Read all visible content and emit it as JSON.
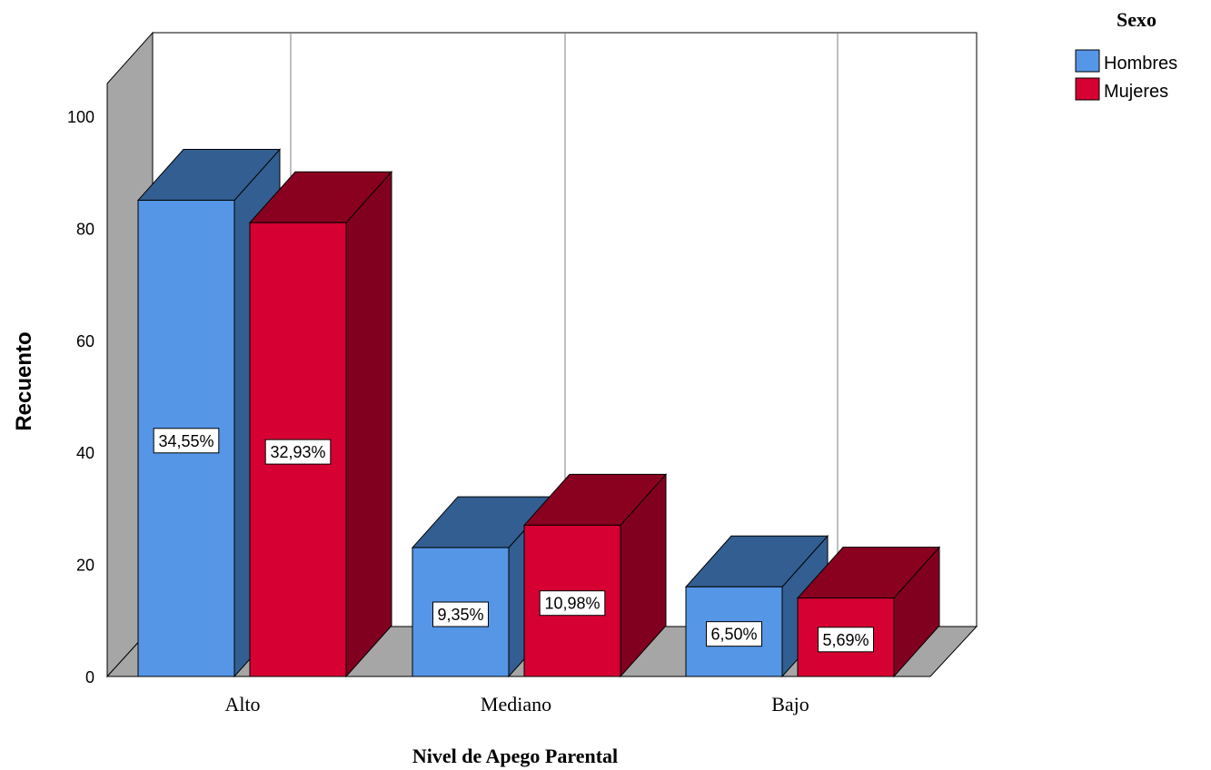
{
  "chart_data": {
    "type": "bar",
    "title": "",
    "xlabel": "Nivel de Apego Parental",
    "ylabel": "Recuento",
    "ylim": [
      0,
      110
    ],
    "yticks": [
      "0",
      "20",
      "40",
      "60",
      "80",
      "100"
    ],
    "categories": [
      "Alto",
      "Mediano",
      "Bajo"
    ],
    "legend": {
      "title": "Sexo",
      "placement": "top-right"
    },
    "series": [
      {
        "name": "Hombres",
        "values": [
          85,
          23,
          16
        ],
        "labels": [
          "34,55%",
          "9,35%",
          "6,50%"
        ],
        "color": "#5596E6",
        "top_color": "#335E91",
        "side_color": "#335E91"
      },
      {
        "name": "Mujeres",
        "values": [
          81,
          27,
          14
        ],
        "labels": [
          "32,93%",
          "10,98%",
          "5,69%"
        ],
        "color": "#D60032",
        "top_color": "#8A001F",
        "side_color": "#82001F"
      }
    ],
    "grid": true,
    "style": "3d-clustered-bar"
  }
}
